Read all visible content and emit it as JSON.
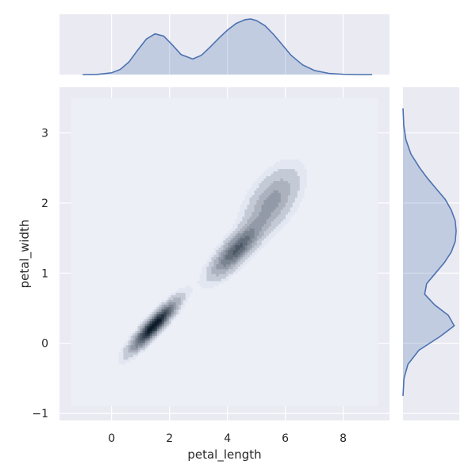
{
  "chart_data": {
    "type": "kde-joint",
    "title": "",
    "xlabel": "petal_length",
    "ylabel": "petal_width",
    "xlim": [
      -1.8,
      9.6
    ],
    "ylim": [
      -1.1,
      3.65
    ],
    "xticks": [
      0,
      2,
      4,
      6,
      8
    ],
    "yticks": [
      -1,
      0,
      1,
      2,
      3
    ],
    "grid": true,
    "style": {
      "background": "#eaeaf2",
      "grid": "#ffffff",
      "line": "#4c72b0",
      "fill": "#4c72b0",
      "density_colormap": [
        "#e3e7f2",
        "#0d1b2a"
      ]
    },
    "joint_density": {
      "components": [
        {
          "mean": [
            1.46,
            0.25
          ],
          "sd": [
            0.5,
            0.22
          ],
          "corr": 0.9,
          "weight": 0.33
        },
        {
          "mean": [
            4.3,
            1.33
          ],
          "sd": [
            0.55,
            0.24
          ],
          "corr": 0.8,
          "weight": 0.33
        },
        {
          "mean": [
            5.55,
            2.03
          ],
          "sd": [
            0.6,
            0.3
          ],
          "corr": 0.55,
          "weight": 0.34
        }
      ],
      "levels": 10,
      "grid_x": [
        -1.4,
        9.2
      ],
      "grid_y": [
        -0.9,
        3.5
      ]
    },
    "marginal_x": {
      "name": "petal_length",
      "x": [
        -1.0,
        -0.5,
        0.0,
        0.3,
        0.6,
        0.9,
        1.2,
        1.5,
        1.8,
        2.1,
        2.4,
        2.8,
        3.1,
        3.4,
        3.7,
        4.0,
        4.3,
        4.6,
        4.8,
        5.0,
        5.3,
        5.6,
        5.9,
        6.2,
        6.6,
        7.0,
        7.5,
        8.0,
        8.5,
        9.0
      ],
      "density": [
        0.0,
        0.001,
        0.012,
        0.035,
        0.085,
        0.165,
        0.24,
        0.275,
        0.26,
        0.2,
        0.135,
        0.105,
        0.13,
        0.185,
        0.245,
        0.3,
        0.345,
        0.37,
        0.375,
        0.365,
        0.33,
        0.27,
        0.2,
        0.13,
        0.065,
        0.028,
        0.008,
        0.002,
        0.0,
        0.0
      ]
    },
    "marginal_y": {
      "name": "petal_width",
      "y": [
        -0.75,
        -0.5,
        -0.3,
        -0.1,
        0.0,
        0.1,
        0.25,
        0.4,
        0.55,
        0.7,
        0.85,
        1.0,
        1.15,
        1.3,
        1.45,
        1.6,
        1.75,
        1.9,
        2.05,
        2.2,
        2.35,
        2.5,
        2.7,
        2.9,
        3.1,
        3.35
      ],
      "density": [
        0.0,
        0.01,
        0.05,
        0.16,
        0.27,
        0.38,
        0.52,
        0.46,
        0.32,
        0.22,
        0.24,
        0.33,
        0.42,
        0.49,
        0.53,
        0.54,
        0.53,
        0.49,
        0.43,
        0.34,
        0.25,
        0.17,
        0.08,
        0.03,
        0.008,
        0.0
      ]
    }
  }
}
